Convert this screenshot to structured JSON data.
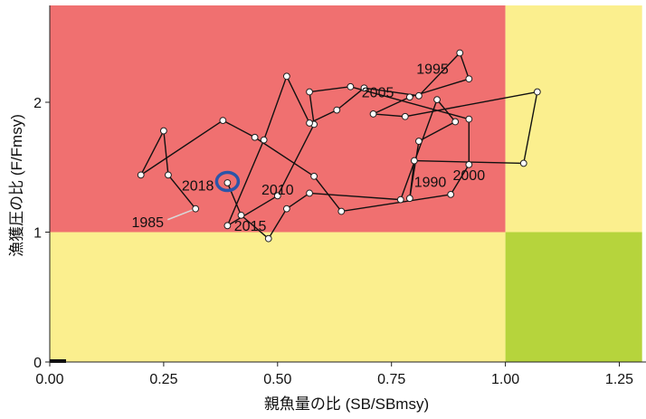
{
  "chart_data": {
    "type": "line",
    "xlabel": "親魚量の比 (SB/SBmsy)",
    "ylabel": "漁獲圧の比 (F/Fmsy)",
    "xlim": [
      0,
      1.3
    ],
    "ylim": [
      0,
      2.75
    ],
    "x_ticks": [
      {
        "value": 0,
        "label": "0.00"
      },
      {
        "value": 0.25,
        "label": "0.25"
      },
      {
        "value": 0.5,
        "label": "0.50"
      },
      {
        "value": 0.75,
        "label": "0.75"
      },
      {
        "value": 1.0,
        "label": "1.00"
      },
      {
        "value": 1.25,
        "label": "1.25"
      }
    ],
    "y_ticks": [
      {
        "value": 0,
        "label": "0"
      },
      {
        "value": 1,
        "label": "1"
      },
      {
        "value": 2,
        "label": "2"
      }
    ],
    "zones": [
      {
        "x": [
          0,
          1.0
        ],
        "y": [
          1.0,
          2.75
        ],
        "color": "#f07070"
      },
      {
        "x": [
          1.0,
          1.3
        ],
        "y": [
          1.0,
          2.75
        ],
        "color": "#fbef8e"
      },
      {
        "x": [
          0,
          1.0
        ],
        "y": [
          0,
          1.0
        ],
        "color": "#fbef8e"
      },
      {
        "x": [
          1.0,
          1.3
        ],
        "y": [
          0,
          1.0
        ],
        "color": "#b6d43c"
      }
    ],
    "series": [
      {
        "line_color": "#111111",
        "point_fill": "#ffffff",
        "x": [
          0.32,
          0.26,
          0.25,
          0.2,
          0.38,
          0.45,
          0.58,
          0.64,
          0.88,
          0.92,
          0.92,
          0.66,
          0.57,
          0.58,
          0.5,
          0.39,
          0.47,
          0.52,
          0.57,
          0.63,
          0.69,
          0.81,
          0.9,
          0.92,
          0.79,
          0.71,
          0.78,
          1.07,
          1.04,
          0.8,
          0.79,
          0.81,
          0.89,
          0.85,
          0.77,
          0.57,
          0.52,
          0.48,
          0.42,
          0.39
        ],
        "y": [
          1.18,
          1.44,
          1.78,
          1.44,
          1.86,
          1.73,
          1.43,
          1.16,
          1.29,
          1.52,
          1.87,
          2.12,
          2.08,
          1.83,
          1.28,
          1.05,
          1.71,
          2.2,
          1.84,
          1.94,
          2.11,
          2.05,
          2.38,
          2.18,
          2.04,
          1.91,
          1.89,
          2.08,
          1.53,
          1.55,
          1.26,
          1.7,
          1.85,
          2.02,
          1.25,
          1.3,
          1.18,
          0.95,
          1.13,
          1.38
        ]
      }
    ],
    "year_labels": [
      {
        "text": "1985",
        "x": 0.215,
        "y": 1.04
      },
      {
        "text": "1990",
        "x": 0.835,
        "y": 1.35
      },
      {
        "text": "1995",
        "x": 0.84,
        "y": 2.22
      },
      {
        "text": "2000",
        "x": 0.92,
        "y": 1.4
      },
      {
        "text": "2005",
        "x": 0.72,
        "y": 2.04
      },
      {
        "text": "2010",
        "x": 0.5,
        "y": 1.29
      },
      {
        "text": "2015",
        "x": 0.44,
        "y": 1.01
      },
      {
        "text": "2018",
        "x": 0.325,
        "y": 1.32
      }
    ],
    "highlight": {
      "x": 0.39,
      "y": 1.39,
      "color": "#2b55a8"
    }
  }
}
